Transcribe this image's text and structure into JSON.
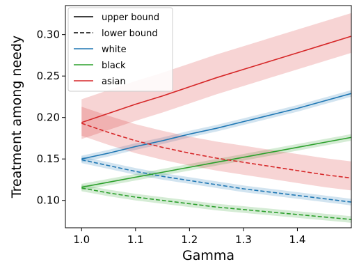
{
  "chart_data": {
    "type": "line",
    "xlabel": "Gamma",
    "ylabel": "Treatment among needy",
    "xlim": [
      0.97,
      1.5
    ],
    "ylim": [
      0.067,
      0.335
    ],
    "x_ticks": [
      1.0,
      1.1,
      1.2,
      1.3,
      1.4
    ],
    "x_tick_labels": [
      "1.0",
      "1.1",
      "1.2",
      "1.3",
      "1.4"
    ],
    "y_ticks": [
      0.1,
      0.15,
      0.2,
      0.25,
      0.3
    ],
    "y_tick_labels": [
      "0.10",
      "0.15",
      "0.20",
      "0.25",
      "0.30"
    ],
    "grid": false,
    "legend_position": "top-left",
    "legend": [
      {
        "label": "upper bound",
        "color": "#000000",
        "style": "solid"
      },
      {
        "label": "lower bound",
        "color": "#000000",
        "style": "dashed"
      },
      {
        "label": "white",
        "color": "#1f77b4",
        "style": "solid"
      },
      {
        "label": "black",
        "color": "#2ca02c",
        "style": "solid"
      },
      {
        "label": "asian",
        "color": "#d62728",
        "style": "solid"
      }
    ],
    "x": [
      1.0,
      1.05,
      1.1,
      1.15,
      1.2,
      1.25,
      1.3,
      1.35,
      1.4,
      1.45,
      1.5
    ],
    "series": [
      {
        "group": "white",
        "bound": "upper",
        "color": "#1f77b4",
        "band": 0.004,
        "values": [
          0.15,
          0.157,
          0.165,
          0.172,
          0.18,
          0.187,
          0.195,
          0.203,
          0.211,
          0.22,
          0.229
        ]
      },
      {
        "group": "white",
        "bound": "lower",
        "color": "#1f77b4",
        "band": 0.004,
        "values": [
          0.149,
          0.142,
          0.135,
          0.129,
          0.124,
          0.119,
          0.114,
          0.11,
          0.106,
          0.102,
          0.098
        ]
      },
      {
        "group": "black",
        "bound": "upper",
        "color": "#2ca02c",
        "band": 0.004,
        "values": [
          0.116,
          0.122,
          0.128,
          0.134,
          0.14,
          0.146,
          0.152,
          0.158,
          0.164,
          0.17,
          0.176
        ]
      },
      {
        "group": "black",
        "bound": "lower",
        "color": "#2ca02c",
        "band": 0.004,
        "values": [
          0.115,
          0.109,
          0.104,
          0.1,
          0.096,
          0.092,
          0.089,
          0.086,
          0.083,
          0.08,
          0.077
        ]
      },
      {
        "group": "asian",
        "bound": "upper",
        "color": "#d62728",
        "band_lo": 0.02,
        "band_hi": 0.028,
        "values": [
          0.194,
          0.205,
          0.216,
          0.226,
          0.237,
          0.248,
          0.258,
          0.268,
          0.278,
          0.288,
          0.298
        ]
      },
      {
        "group": "asian",
        "bound": "lower",
        "color": "#d62728",
        "band_lo": 0.015,
        "band_hi": 0.02,
        "values": [
          0.193,
          0.182,
          0.172,
          0.164,
          0.157,
          0.151,
          0.146,
          0.141,
          0.136,
          0.131,
          0.127
        ]
      }
    ]
  }
}
